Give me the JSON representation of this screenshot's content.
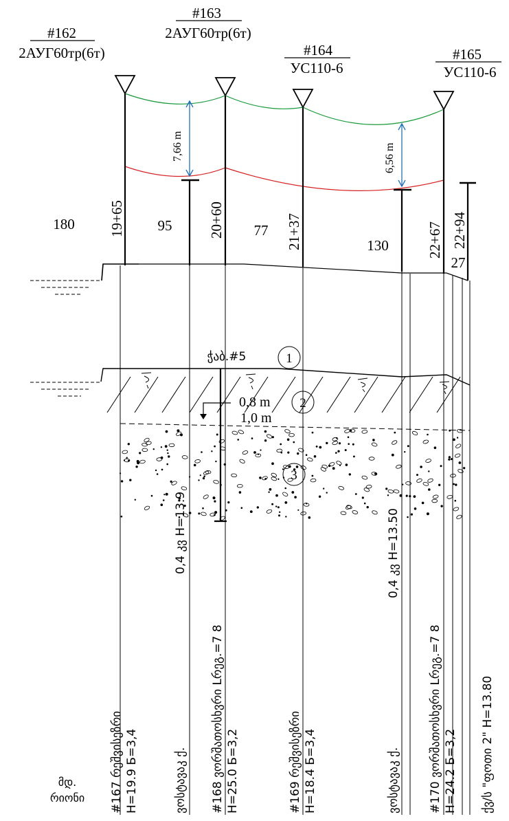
{
  "poles": [
    {
      "num": "#162",
      "type": "2АУГ60тр(6т)"
    },
    {
      "num": "#163",
      "type": "2АУГ60тр(6т)"
    },
    {
      "num": "#164",
      "type": "УС110-6"
    },
    {
      "num": "#165",
      "type": "УС110-6"
    }
  ],
  "chainages": [
    "19+65",
    "20+60",
    "21+37",
    "22+67",
    "22+94"
  ],
  "spans": [
    "180",
    "95",
    "77",
    "130",
    "27"
  ],
  "clearances": [
    "7,66 m",
    "6,56 m"
  ],
  "river": {
    "label": "ჭაბ.#5"
  },
  "depths": [
    "0,8 m",
    "1,0 m"
  ],
  "layers": [
    "1",
    "2",
    "3"
  ],
  "colors": {
    "upper_wire": "#1a9a3c",
    "lower_wire": "#d62222",
    "dimension": "#1f6fb5"
  },
  "bottom_labels": [
    {
      "line1": "#167 რეშვისეზრი",
      "line2": "H=19.9 Б=3,4"
    },
    {
      "line1": "0,4 კვ H=13.9",
      "line2": "ვოსტავაკ ქ."
    },
    {
      "line1": "#168 ვორშათოსხვრი Lრეგ.=7 8",
      "line2": "H=25.0 Б=3,2"
    },
    {
      "line1": "#169 რეშვისეზრი",
      "line2": "H=18.4 Б=3,4"
    },
    {
      "line1": "0,4 კვ H=13.50",
      "line2": "ვოსტავაკ ქ."
    },
    {
      "line1": "#170 ვორშათოსხვრი Lრეგ.=7 8",
      "line2": "H=24.2 Б=3,2"
    },
    {
      "line1": "ქვ/ს \"ფოთი 2\" H=13.80",
      "line2": ""
    }
  ],
  "note": {
    "line1": "მდ.",
    "line2": "რიონი"
  }
}
